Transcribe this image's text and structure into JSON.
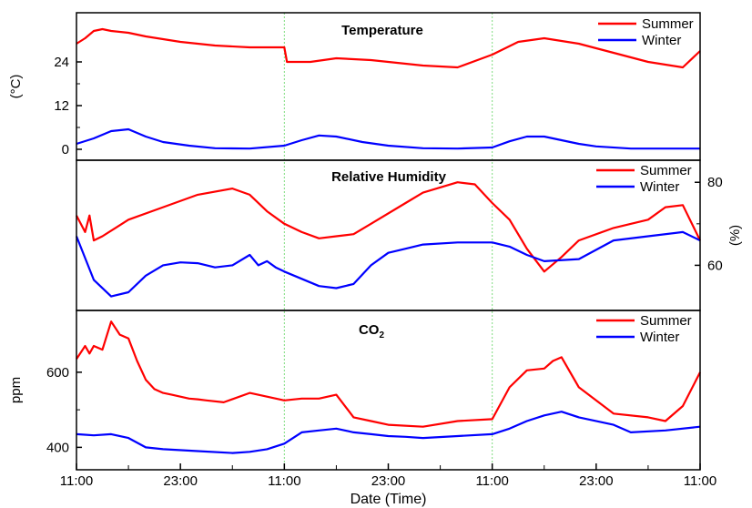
{
  "chart_data": {
    "type": "line",
    "xlabel": "Date (Time)",
    "x_ticks": [
      "11:00",
      "23:00",
      "11:00",
      "23:00",
      "11:00",
      "23:00",
      "11:00"
    ],
    "x_range_hours": [
      0,
      72
    ],
    "colors": {
      "summer": "#ff0000",
      "winter": "#0000ff",
      "divider": "#7fdc7f"
    },
    "panels": [
      {
        "title": "Temperature",
        "ylabel": "(°C)",
        "y_axis_side": "left",
        "ylim": [
          -2,
          36
        ],
        "yticks": [
          0,
          12,
          24
        ],
        "legend": [
          "Summer",
          "Winter"
        ],
        "series": [
          {
            "name": "Summer",
            "x": [
              0,
              1,
              2,
              3,
              4,
              6,
              8,
              12,
              16,
              20,
              24,
              24.3,
              27,
              30,
              34,
              40,
              44,
              48,
              51,
              54,
              58,
              62,
              66,
              70,
              72
            ],
            "y": [
              29,
              30.5,
              32.5,
              33,
              32.5,
              32,
              31,
              29.5,
              28.5,
              28,
              28,
              24,
              24,
              25,
              24.5,
              23,
              22.5,
              26,
              29.5,
              30.5,
              29,
              26.5,
              24,
              22.5,
              27
            ]
          },
          {
            "name": "Winter",
            "x": [
              0,
              2,
              4,
              6,
              8,
              10,
              13,
              16,
              20,
              24,
              26,
              28,
              30,
              33,
              36,
              40,
              44,
              48,
              50,
              52,
              54,
              56,
              58,
              60,
              64,
              72
            ],
            "y": [
              1.5,
              3,
              5,
              5.5,
              3.5,
              2,
              1,
              0.3,
              0.2,
              1,
              2.5,
              3.8,
              3.5,
              2,
              1,
              0.3,
              0.2,
              0.5,
              2.2,
              3.5,
              3.5,
              2.5,
              1.5,
              0.8,
              0.2,
              0.2
            ]
          }
        ]
      },
      {
        "title": "Relative Humidity",
        "ylabel": "(%)",
        "y_axis_side": "right",
        "ylim": [
          50,
          84
        ],
        "yticks": [
          60,
          80
        ],
        "legend": [
          "Summer",
          "Winter"
        ],
        "series": [
          {
            "name": "Summer",
            "x": [
              0,
              1,
              1.5,
              2,
              3,
              6,
              10,
              14,
              18,
              20,
              22,
              24,
              26,
              28,
              30,
              32,
              34,
              38,
              40,
              44,
              46,
              48,
              50,
              52,
              54,
              56,
              58,
              62,
              66,
              68,
              70,
              72
            ],
            "y": [
              72,
              68,
              72,
              66,
              67,
              71,
              74,
              77,
              78.5,
              77,
              73,
              70,
              68,
              66.5,
              67,
              67.5,
              70,
              75,
              77.5,
              80,
              79.5,
              75,
              71,
              64,
              58.5,
              62,
              66,
              69,
              71,
              74,
              74.5,
              66
            ]
          },
          {
            "name": "Winter",
            "x": [
              0,
              2,
              4,
              6,
              8,
              10,
              12,
              14,
              16,
              18,
              20,
              21,
              22,
              23,
              24,
              28,
              30,
              32,
              34,
              36,
              38,
              40,
              44,
              48,
              50,
              52,
              54,
              58,
              62,
              66,
              70,
              72
            ],
            "y": [
              67,
              56.5,
              52.5,
              53.5,
              57.5,
              60,
              60.7,
              60.5,
              59.5,
              60,
              62.5,
              60,
              61,
              59.5,
              58.5,
              55,
              54.5,
              55.5,
              60,
              63,
              64,
              65,
              65.5,
              65.5,
              64.5,
              62.5,
              61,
              61.5,
              66,
              67,
              68,
              66
            ]
          }
        ]
      },
      {
        "title": "CO",
        "title_subscript": "2",
        "ylabel": "ppm",
        "y_axis_side": "left",
        "ylim": [
          350,
          750
        ],
        "yticks": [
          400,
          600
        ],
        "legend": [
          "Summer",
          "Winter"
        ],
        "series": [
          {
            "name": "Summer",
            "x": [
              0,
              1,
              1.5,
              2,
              3,
              4,
              5,
              6,
              7,
              8,
              9,
              10,
              11,
              12,
              13,
              14,
              15,
              17,
              20,
              24,
              26,
              28,
              30,
              32,
              34,
              36,
              40,
              44,
              48,
              50,
              52,
              54,
              55,
              56,
              58,
              62,
              66,
              68,
              70,
              72
            ],
            "y": [
              635,
              670,
              650,
              670,
              660,
              735,
              700,
              690,
              630,
              580,
              555,
              545,
              540,
              535,
              530,
              528,
              525,
              520,
              545,
              525,
              530,
              530,
              540,
              480,
              470,
              460,
              455,
              470,
              475,
              560,
              605,
              610,
              630,
              640,
              560,
              490,
              480,
              470,
              510,
              600
            ]
          },
          {
            "name": "Winter",
            "x": [
              0,
              2,
              4,
              6,
              8,
              10,
              14,
              18,
              20,
              22,
              24,
              26,
              28,
              30,
              32,
              34,
              36,
              38,
              40,
              44,
              48,
              50,
              52,
              54,
              56,
              58,
              62,
              64,
              68,
              72
            ],
            "y": [
              435,
              432,
              435,
              425,
              400,
              395,
              390,
              385,
              388,
              395,
              410,
              440,
              445,
              450,
              440,
              435,
              430,
              428,
              425,
              430,
              435,
              450,
              470,
              485,
              495,
              480,
              460,
              440,
              445,
              455
            ]
          }
        ]
      }
    ]
  }
}
